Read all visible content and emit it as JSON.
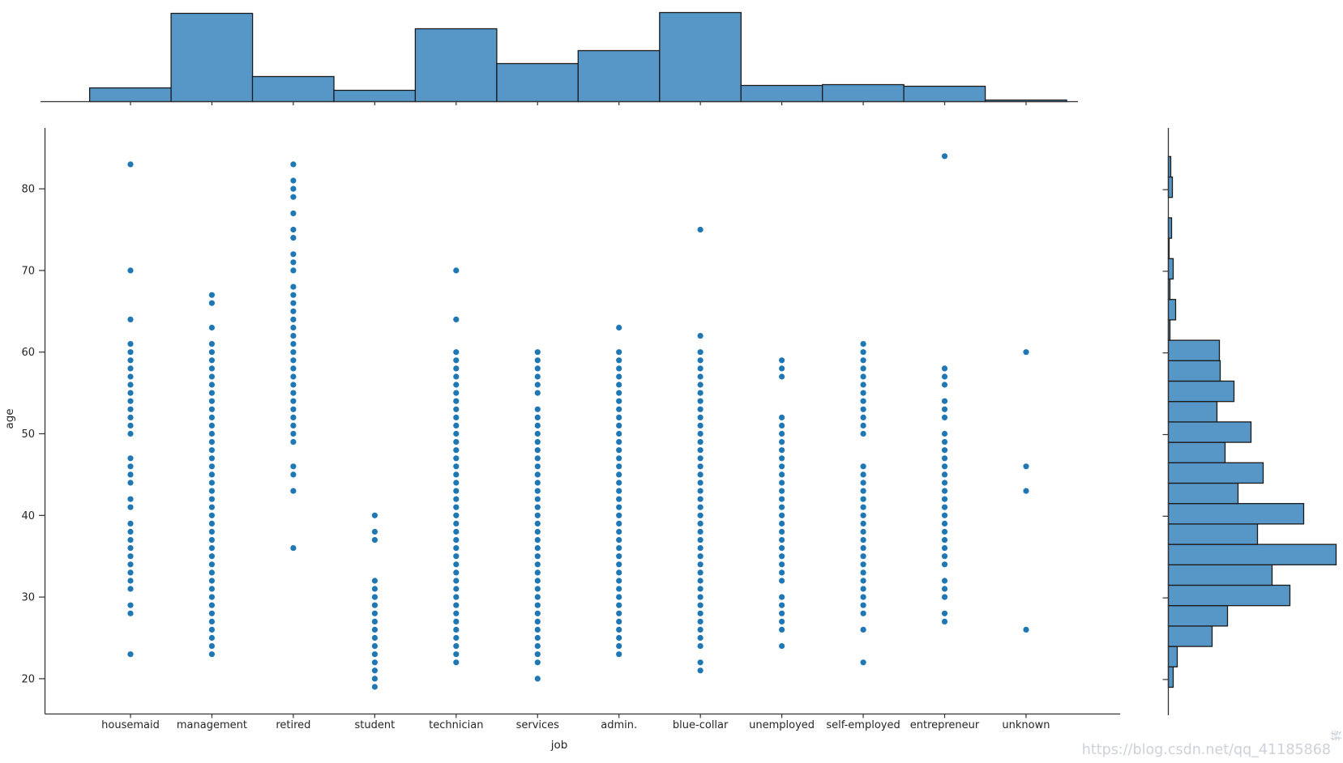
{
  "page": {
    "background": "#ffffff"
  },
  "chart_data": {
    "type": "scatter",
    "subtype": "categorical-strip-plot-with-marginal-histograms",
    "title": "",
    "xlabel": "job",
    "ylabel": "age",
    "y_ticks": [
      20,
      30,
      40,
      50,
      60,
      70,
      80
    ],
    "ylim": [
      17,
      87
    ],
    "legend": "none",
    "grid": false,
    "categories": [
      "housemaid",
      "management",
      "retired",
      "student",
      "technician",
      "services",
      "admin.",
      "blue-collar",
      "unemployed",
      "self-employed",
      "entrepreneur",
      "unknown"
    ],
    "scatter_ages_by_job": {
      "housemaid": [
        23,
        28,
        29,
        31,
        32,
        33,
        34,
        35,
        36,
        37,
        38,
        39,
        41,
        42,
        44,
        45,
        46,
        47,
        50,
        51,
        52,
        53,
        54,
        55,
        56,
        57,
        58,
        59,
        60,
        61,
        64,
        70,
        83
      ],
      "management": [
        23,
        24,
        25,
        26,
        27,
        28,
        29,
        30,
        31,
        32,
        33,
        34,
        35,
        36,
        37,
        38,
        39,
        40,
        41,
        42,
        43,
        44,
        45,
        46,
        47,
        48,
        49,
        50,
        51,
        52,
        53,
        54,
        55,
        56,
        57,
        58,
        59,
        60,
        61,
        63,
        66,
        67
      ],
      "retired": [
        36,
        43,
        45,
        46,
        49,
        50,
        51,
        52,
        53,
        54,
        55,
        56,
        57,
        58,
        59,
        60,
        61,
        62,
        63,
        64,
        65,
        66,
        67,
        68,
        70,
        71,
        72,
        74,
        75,
        77,
        79,
        80,
        81,
        83
      ],
      "student": [
        19,
        20,
        21,
        22,
        23,
        24,
        25,
        26,
        27,
        28,
        29,
        30,
        31,
        32,
        37,
        38,
        40
      ],
      "technician": [
        22,
        23,
        24,
        25,
        26,
        27,
        28,
        29,
        30,
        31,
        32,
        33,
        34,
        35,
        36,
        37,
        38,
        39,
        40,
        41,
        42,
        43,
        44,
        45,
        46,
        47,
        48,
        49,
        50,
        51,
        52,
        53,
        54,
        55,
        56,
        57,
        58,
        59,
        60,
        64,
        70
      ],
      "services": [
        20,
        22,
        23,
        24,
        25,
        26,
        27,
        28,
        29,
        30,
        31,
        32,
        33,
        34,
        35,
        36,
        37,
        38,
        39,
        40,
        41,
        42,
        43,
        44,
        45,
        46,
        47,
        48,
        49,
        50,
        51,
        52,
        53,
        55,
        56,
        57,
        58,
        59,
        60
      ],
      "admin.": [
        23,
        24,
        25,
        26,
        27,
        28,
        29,
        30,
        31,
        32,
        33,
        34,
        35,
        36,
        37,
        38,
        39,
        40,
        41,
        42,
        43,
        44,
        45,
        46,
        47,
        48,
        49,
        50,
        51,
        52,
        53,
        54,
        55,
        56,
        57,
        58,
        59,
        60,
        63
      ],
      "blue-collar": [
        21,
        22,
        24,
        25,
        26,
        27,
        28,
        29,
        30,
        31,
        32,
        33,
        34,
        35,
        36,
        37,
        38,
        39,
        40,
        41,
        42,
        43,
        44,
        45,
        46,
        47,
        48,
        49,
        50,
        51,
        52,
        53,
        54,
        55,
        56,
        57,
        58,
        59,
        60,
        62,
        75
      ],
      "unemployed": [
        24,
        26,
        27,
        28,
        29,
        30,
        32,
        33,
        34,
        35,
        36,
        37,
        38,
        39,
        40,
        41,
        42,
        43,
        44,
        45,
        46,
        47,
        48,
        49,
        50,
        51,
        52,
        57,
        58,
        59
      ],
      "self-employed": [
        22,
        26,
        28,
        29,
        30,
        31,
        32,
        33,
        34,
        35,
        36,
        37,
        38,
        39,
        40,
        41,
        42,
        43,
        44,
        45,
        46,
        50,
        51,
        52,
        53,
        54,
        55,
        56,
        57,
        58,
        59,
        60,
        61
      ],
      "entrepreneur": [
        27,
        28,
        30,
        31,
        32,
        34,
        35,
        36,
        37,
        38,
        39,
        40,
        41,
        42,
        43,
        44,
        45,
        46,
        47,
        48,
        49,
        50,
        52,
        53,
        54,
        56,
        57,
        58,
        84
      ],
      "unknown": [
        26,
        43,
        46,
        60
      ]
    },
    "top_histogram": {
      "description": "count of records per job category (relative bar heights in px)",
      "categories": [
        "housemaid",
        "management",
        "retired",
        "student",
        "technician",
        "services",
        "admin.",
        "blue-collar",
        "unemployed",
        "self-employed",
        "entrepreneur",
        "unknown"
      ],
      "relative_heights": [
        17,
        109,
        31,
        14,
        90,
        47,
        63,
        110,
        20,
        21,
        19,
        2
      ]
    },
    "right_histogram": {
      "description": "age distribution, horizontal bars (relative lengths in px), bins of 2.5 years from age 19 to 84, listed bottom-up",
      "age_start": 19,
      "bin_width_years": 2.5,
      "relative_lengths_bottom_up": [
        6,
        11,
        54,
        73,
        150,
        128,
        207,
        110,
        167,
        86,
        117,
        70,
        102,
        60,
        81,
        64,
        63,
        2,
        9,
        2,
        6,
        1,
        4,
        0,
        5,
        3
      ]
    },
    "colors": {
      "dot": "#1f77b4",
      "hist_fill": "#5697c8",
      "hist_edge": "#1a1a1a",
      "spine": "#333333",
      "tick_label": "#262626",
      "watermark": "#cdd2d9"
    }
  },
  "watermark": {
    "text": "https://blog.csdn.net/qq_41185868",
    "rotated_text": "转"
  }
}
